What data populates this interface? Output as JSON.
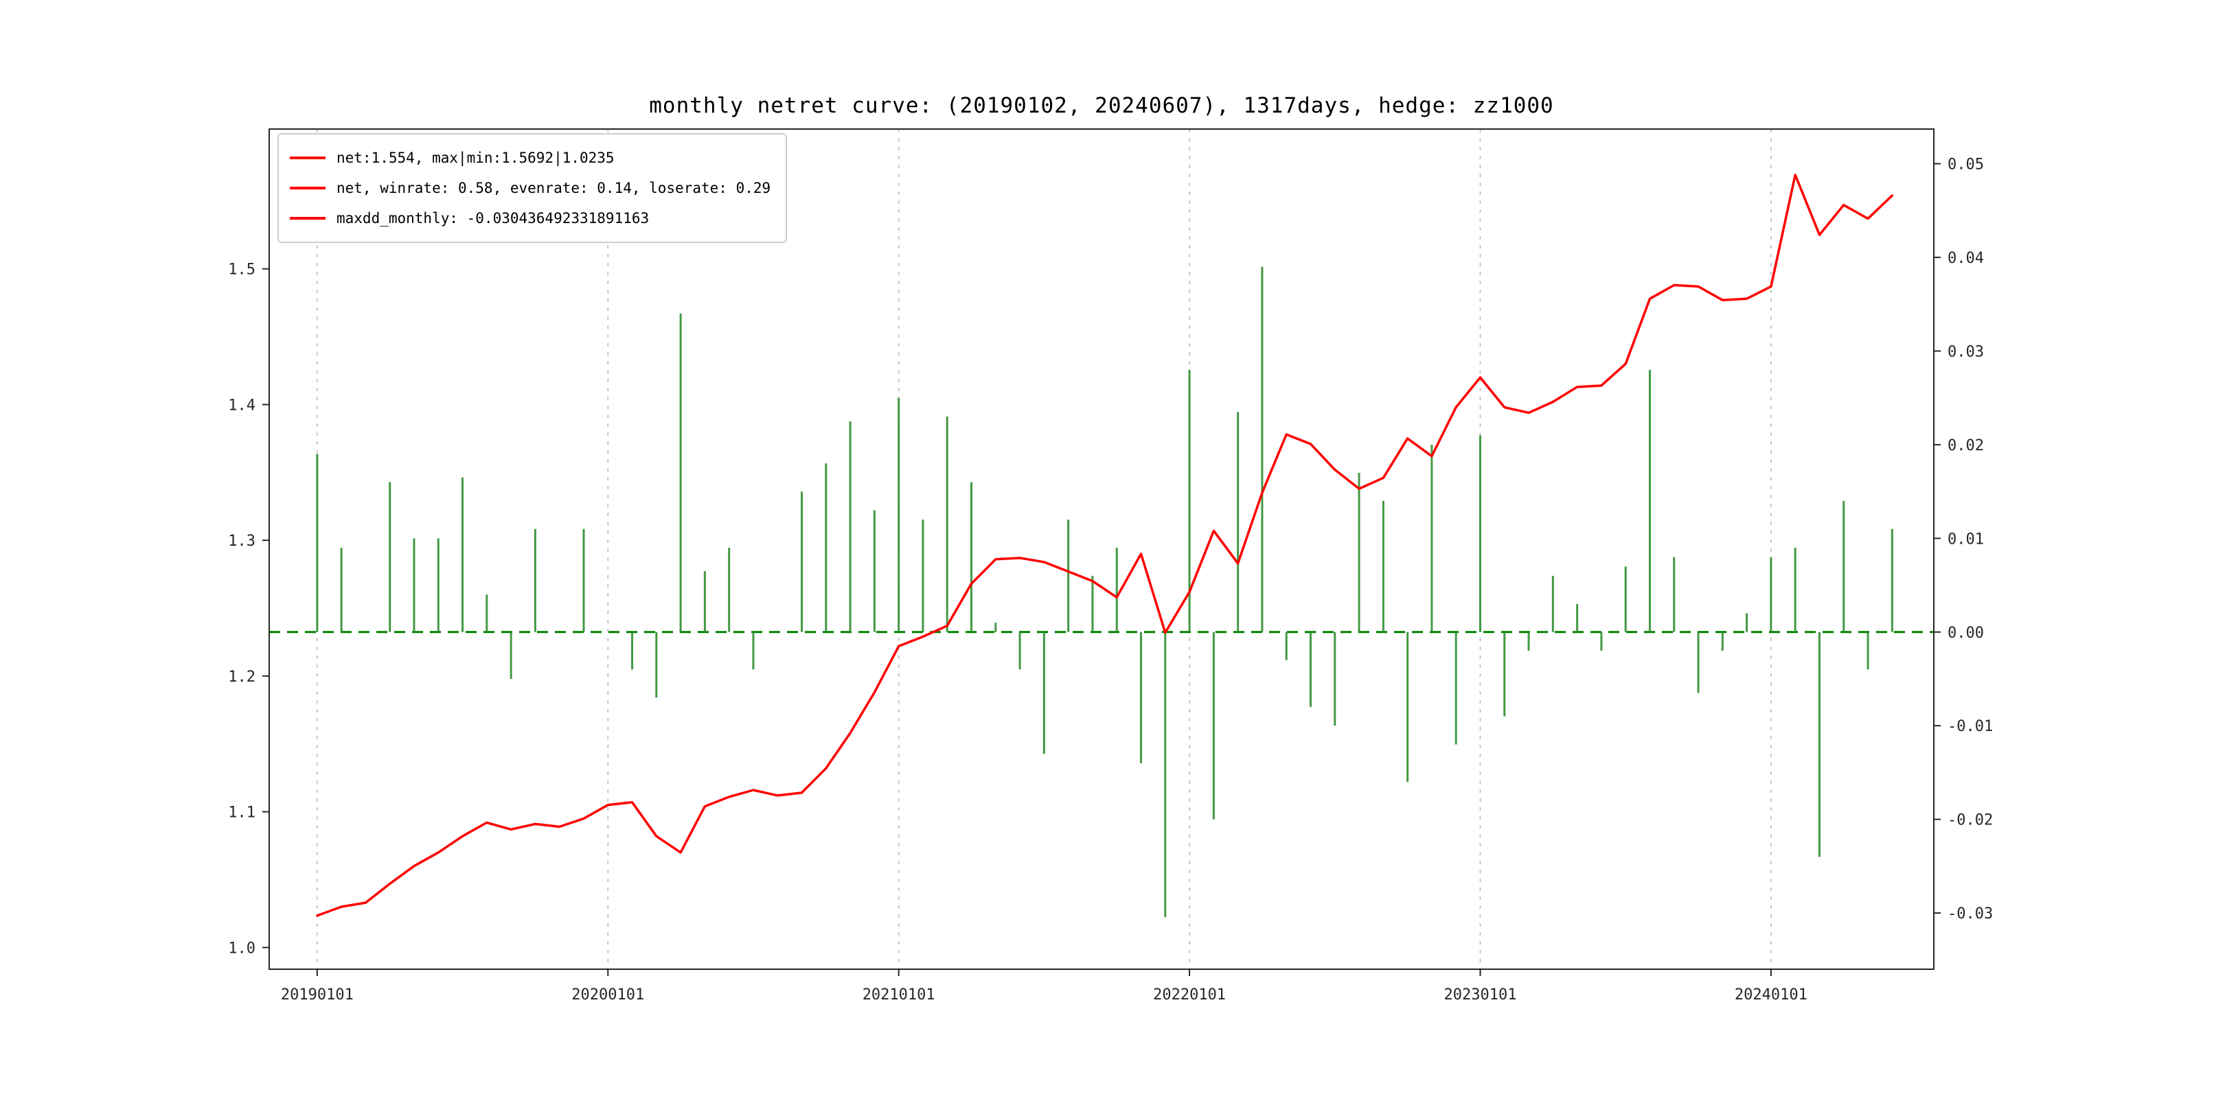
{
  "chart_data": {
    "type": "line+bar",
    "title": "monthly netret curve: (20190102, 20240607), 1317days, hedge: zz1000",
    "legend": [
      "net:1.554, max|min:1.5692|1.0235",
      "net, winrate: 0.58, evenrate: 0.14, loserate: 0.29",
      "maxdd_monthly: -0.030436492331891163"
    ],
    "legend_position": "upper left",
    "grid": "vertical dashed lines at year ticks",
    "x_ticks": [
      2019,
      2020,
      2021,
      2022,
      2023,
      2024
    ],
    "x_tick_labels": [
      "20190101",
      "20200101",
      "20210101",
      "20220101",
      "20230101",
      "20240101"
    ],
    "x_range": [
      2018.835,
      2024.56
    ],
    "left_axis": {
      "label": "",
      "ticks": [
        1.0,
        1.1,
        1.2,
        1.3,
        1.4,
        1.5
      ],
      "lim": [
        0.984,
        1.603
      ]
    },
    "right_axis": {
      "label": "",
      "ticks": [
        -0.03,
        -0.02,
        -0.01,
        0.0,
        0.01,
        0.02,
        0.03,
        0.04,
        0.05
      ],
      "lim": [
        -0.036,
        0.0537
      ]
    },
    "zero_line": 0.0,
    "colors": {
      "net_line": "#ff0000",
      "bars": "#2f8f2f",
      "zero_line": "#008000",
      "grid": "#bbbbbb",
      "spine": "#262626"
    },
    "months": [
      "2019-01",
      "2019-02",
      "2019-03",
      "2019-04",
      "2019-05",
      "2019-06",
      "2019-07",
      "2019-08",
      "2019-09",
      "2019-10",
      "2019-11",
      "2019-12",
      "2020-01",
      "2020-02",
      "2020-03",
      "2020-04",
      "2020-05",
      "2020-06",
      "2020-07",
      "2020-08",
      "2020-09",
      "2020-10",
      "2020-11",
      "2020-12",
      "2021-01",
      "2021-02",
      "2021-03",
      "2021-04",
      "2021-05",
      "2021-06",
      "2021-07",
      "2021-08",
      "2021-09",
      "2021-10",
      "2021-11",
      "2021-12",
      "2022-01",
      "2022-02",
      "2022-03",
      "2022-04",
      "2022-05",
      "2022-06",
      "2022-07",
      "2022-08",
      "2022-09",
      "2022-10",
      "2022-11",
      "2022-12",
      "2023-01",
      "2023-02",
      "2023-03",
      "2023-04",
      "2023-05",
      "2023-06",
      "2023-07",
      "2023-08",
      "2023-09",
      "2023-10",
      "2023-11",
      "2023-12",
      "2024-01",
      "2024-02",
      "2024-03",
      "2024-04",
      "2024-05",
      "2024-06"
    ],
    "series": [
      {
        "name": "net",
        "axis": "left",
        "type": "line",
        "values": [
          1.0235,
          1.03,
          1.033,
          1.047,
          1.06,
          1.07,
          1.082,
          1.092,
          1.087,
          1.091,
          1.089,
          1.095,
          1.105,
          1.107,
          1.082,
          1.07,
          1.104,
          1.111,
          1.116,
          1.112,
          1.114,
          1.132,
          1.158,
          1.188,
          1.222,
          1.229,
          1.237,
          1.268,
          1.286,
          1.287,
          1.284,
          1.277,
          1.27,
          1.258,
          1.29,
          1.232,
          1.262,
          1.307,
          1.283,
          1.335,
          1.378,
          1.371,
          1.352,
          1.338,
          1.346,
          1.375,
          1.362,
          1.398,
          1.42,
          1.398,
          1.394,
          1.402,
          1.413,
          1.414,
          1.43,
          1.478,
          1.488,
          1.487,
          1.477,
          1.478,
          1.487,
          1.5692,
          1.525,
          1.547,
          1.537,
          1.554
        ]
      },
      {
        "name": "monthly_return",
        "axis": "right",
        "type": "bar",
        "values": [
          0.019,
          0.009,
          0.0,
          0.016,
          0.01,
          0.01,
          0.0165,
          0.004,
          -0.005,
          0.011,
          0.0,
          0.011,
          0.0,
          -0.004,
          -0.007,
          0.034,
          0.0065,
          0.009,
          -0.004,
          0.0,
          0.015,
          0.018,
          0.0225,
          0.013,
          0.025,
          0.012,
          0.023,
          0.016,
          0.001,
          -0.004,
          -0.013,
          0.012,
          0.006,
          0.009,
          -0.014,
          -0.030436492331891163,
          0.028,
          -0.02,
          0.0235,
          0.039,
          -0.003,
          -0.008,
          -0.01,
          0.017,
          0.014,
          -0.016,
          0.02,
          -0.012,
          0.021,
          -0.009,
          -0.002,
          0.006,
          0.003,
          -0.002,
          0.007,
          0.028,
          0.008,
          -0.0065,
          -0.002,
          0.002,
          0.008,
          0.009,
          -0.024,
          0.014,
          -0.004,
          0.011
        ]
      }
    ]
  }
}
